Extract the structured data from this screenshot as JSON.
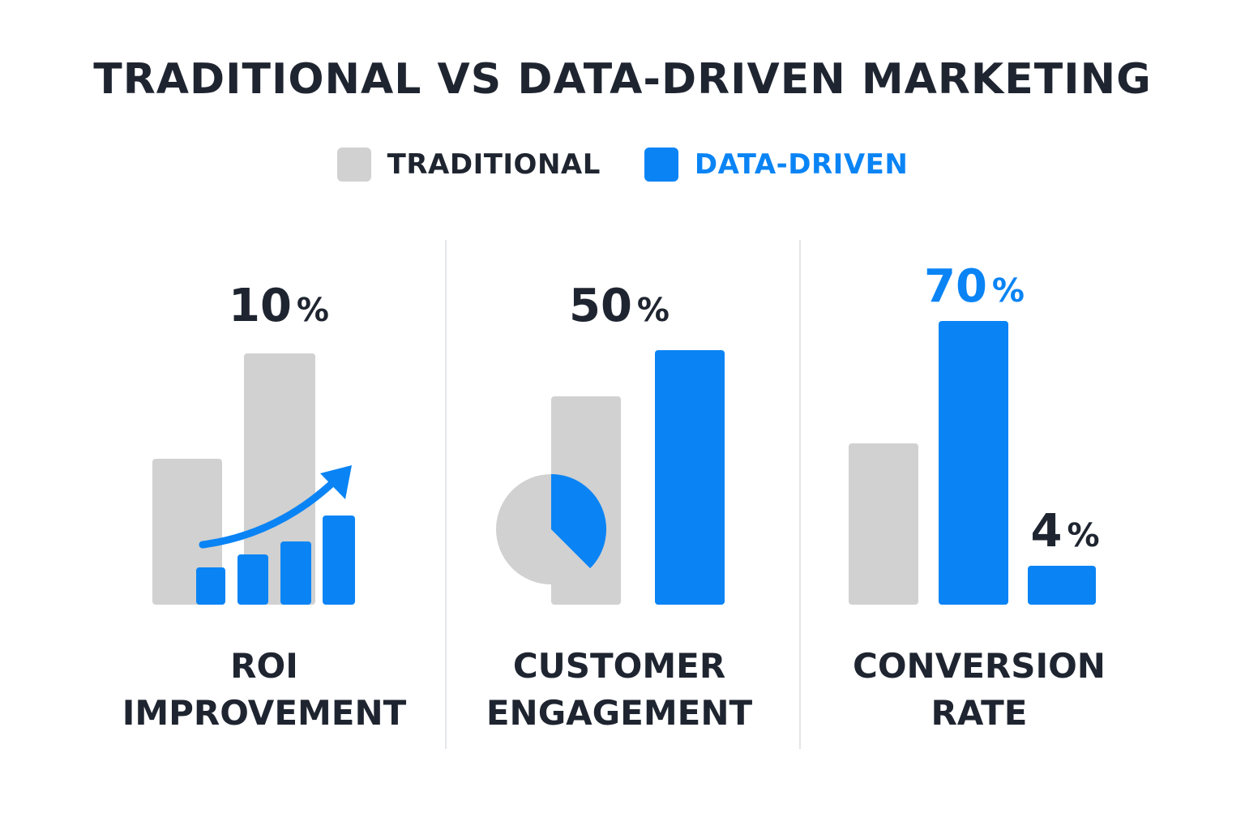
{
  "chart_data": {
    "type": "bar",
    "title": "TRADITIONAL VS DATA-DRIVEN MARKETING",
    "legend": [
      {
        "name": "TRADITIONAL",
        "color": "#d1d1d1"
      },
      {
        "name": "DATA-DRIVEN",
        "color": "#0a84f5"
      }
    ],
    "colors": {
      "traditional": "#d1d1d1",
      "data_driven": "#0a84f5",
      "text": "#1f2530",
      "divider": "#e3e6ea"
    },
    "panels": [
      {
        "label_lines": [
          "ROI",
          "IMPROVEMENT"
        ],
        "value": 10,
        "value_text": "10",
        "unit": "%",
        "value_color": "dark",
        "icon": "rising-bar-trend-arrow-icon"
      },
      {
        "label_lines": [
          "CUSTOMER",
          "ENGAGEMENT"
        ],
        "value": 50,
        "value_text": "50",
        "unit": "%",
        "value_color": "dark",
        "icon": "pie-slice-icon",
        "pie_fraction": 0.375
      },
      {
        "label_lines": [
          "CONVERSION",
          "RATE"
        ],
        "value": 70,
        "value_text": "70",
        "unit": "%",
        "value_color": "accent",
        "secondary_value": 4,
        "secondary_value_text": "4",
        "secondary_unit": "%"
      }
    ]
  }
}
